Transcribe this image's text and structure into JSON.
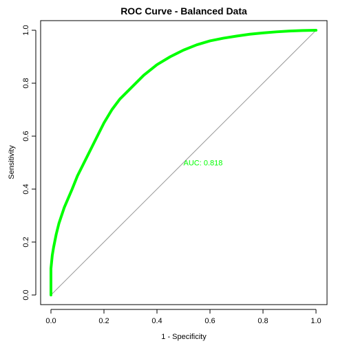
{
  "chart_data": {
    "type": "line",
    "title": "ROC Curve - Balanced Data",
    "xlabel": "1 - Specificity",
    "ylabel": "Sensitivity",
    "xlim": [
      0,
      1
    ],
    "ylim": [
      0,
      1
    ],
    "x_ticks": [
      "0.0",
      "0.2",
      "0.4",
      "0.6",
      "0.8",
      "1.0"
    ],
    "y_ticks": [
      "0.0",
      "0.2",
      "0.4",
      "0.6",
      "0.8",
      "1.0"
    ],
    "grid": false,
    "legend": "none",
    "annotation": "AUC: 0.818",
    "colors": {
      "curve": "#00ff00",
      "diagonal": "#999999",
      "axis": "#000000",
      "annotation": "#00ff00"
    },
    "series": [
      {
        "x": [
          0,
          0,
          0,
          0.005,
          0.01,
          0.02,
          0.03,
          0.05,
          0.08,
          0.1,
          0.12,
          0.15,
          0.18,
          0.2,
          0.23,
          0.26,
          0.3,
          0.35,
          0.4,
          0.45,
          0.5,
          0.55,
          0.6,
          0.65,
          0.7,
          0.75,
          0.8,
          0.85,
          0.9,
          0.95,
          1.0
        ],
        "y": [
          0,
          0.05,
          0.1,
          0.15,
          0.18,
          0.23,
          0.27,
          0.33,
          0.4,
          0.45,
          0.49,
          0.55,
          0.61,
          0.65,
          0.7,
          0.74,
          0.78,
          0.83,
          0.87,
          0.9,
          0.925,
          0.945,
          0.96,
          0.97,
          0.978,
          0.985,
          0.99,
          0.994,
          0.997,
          0.999,
          1.0
        ]
      },
      {
        "x": [
          0,
          1
        ],
        "y": [
          0,
          1
        ]
      }
    ]
  }
}
